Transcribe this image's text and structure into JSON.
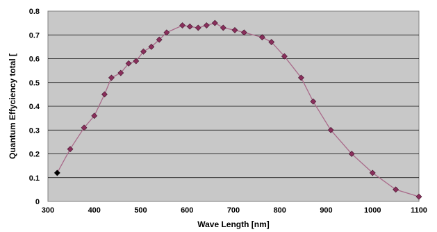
{
  "chart_data": {
    "type": "scatter",
    "title": "",
    "xlabel": "Wave Length [nm]",
    "ylabel": "Quantum Effyciency total [",
    "xlim": [
      300,
      1100
    ],
    "ylim": [
      0,
      0.8
    ],
    "xticks": [
      "300",
      "400",
      "500",
      "600",
      "700",
      "800",
      "900",
      "1000",
      "1100"
    ],
    "yticks": [
      "0",
      "0.1",
      "0.2",
      "0.3",
      "0.4",
      "0.5",
      "0.6",
      "0.7",
      "0.8"
    ],
    "grid": "horizontal",
    "legend": "none",
    "series": [
      {
        "x": [
          320,
          348,
          378,
          400,
          422,
          437,
          457,
          474,
          490,
          506,
          523,
          540,
          556,
          590,
          606,
          624,
          642,
          660,
          678,
          703,
          723,
          762,
          782,
          810,
          846,
          872,
          910,
          955,
          1000,
          1050,
          1100
        ],
        "y": [
          0.12,
          0.22,
          0.31,
          0.36,
          0.45,
          0.52,
          0.54,
          0.58,
          0.59,
          0.63,
          0.65,
          0.68,
          0.71,
          0.74,
          0.735,
          0.73,
          0.74,
          0.75,
          0.73,
          0.72,
          0.71,
          0.69,
          0.67,
          0.61,
          0.52,
          0.42,
          0.3,
          0.2,
          0.12,
          0.05,
          0.02
        ]
      }
    ],
    "colors": {
      "plot_background": "#c8c8c8",
      "line": "#a96a8a",
      "marker": "#8a2f5c",
      "first_marker": "#000000"
    }
  }
}
